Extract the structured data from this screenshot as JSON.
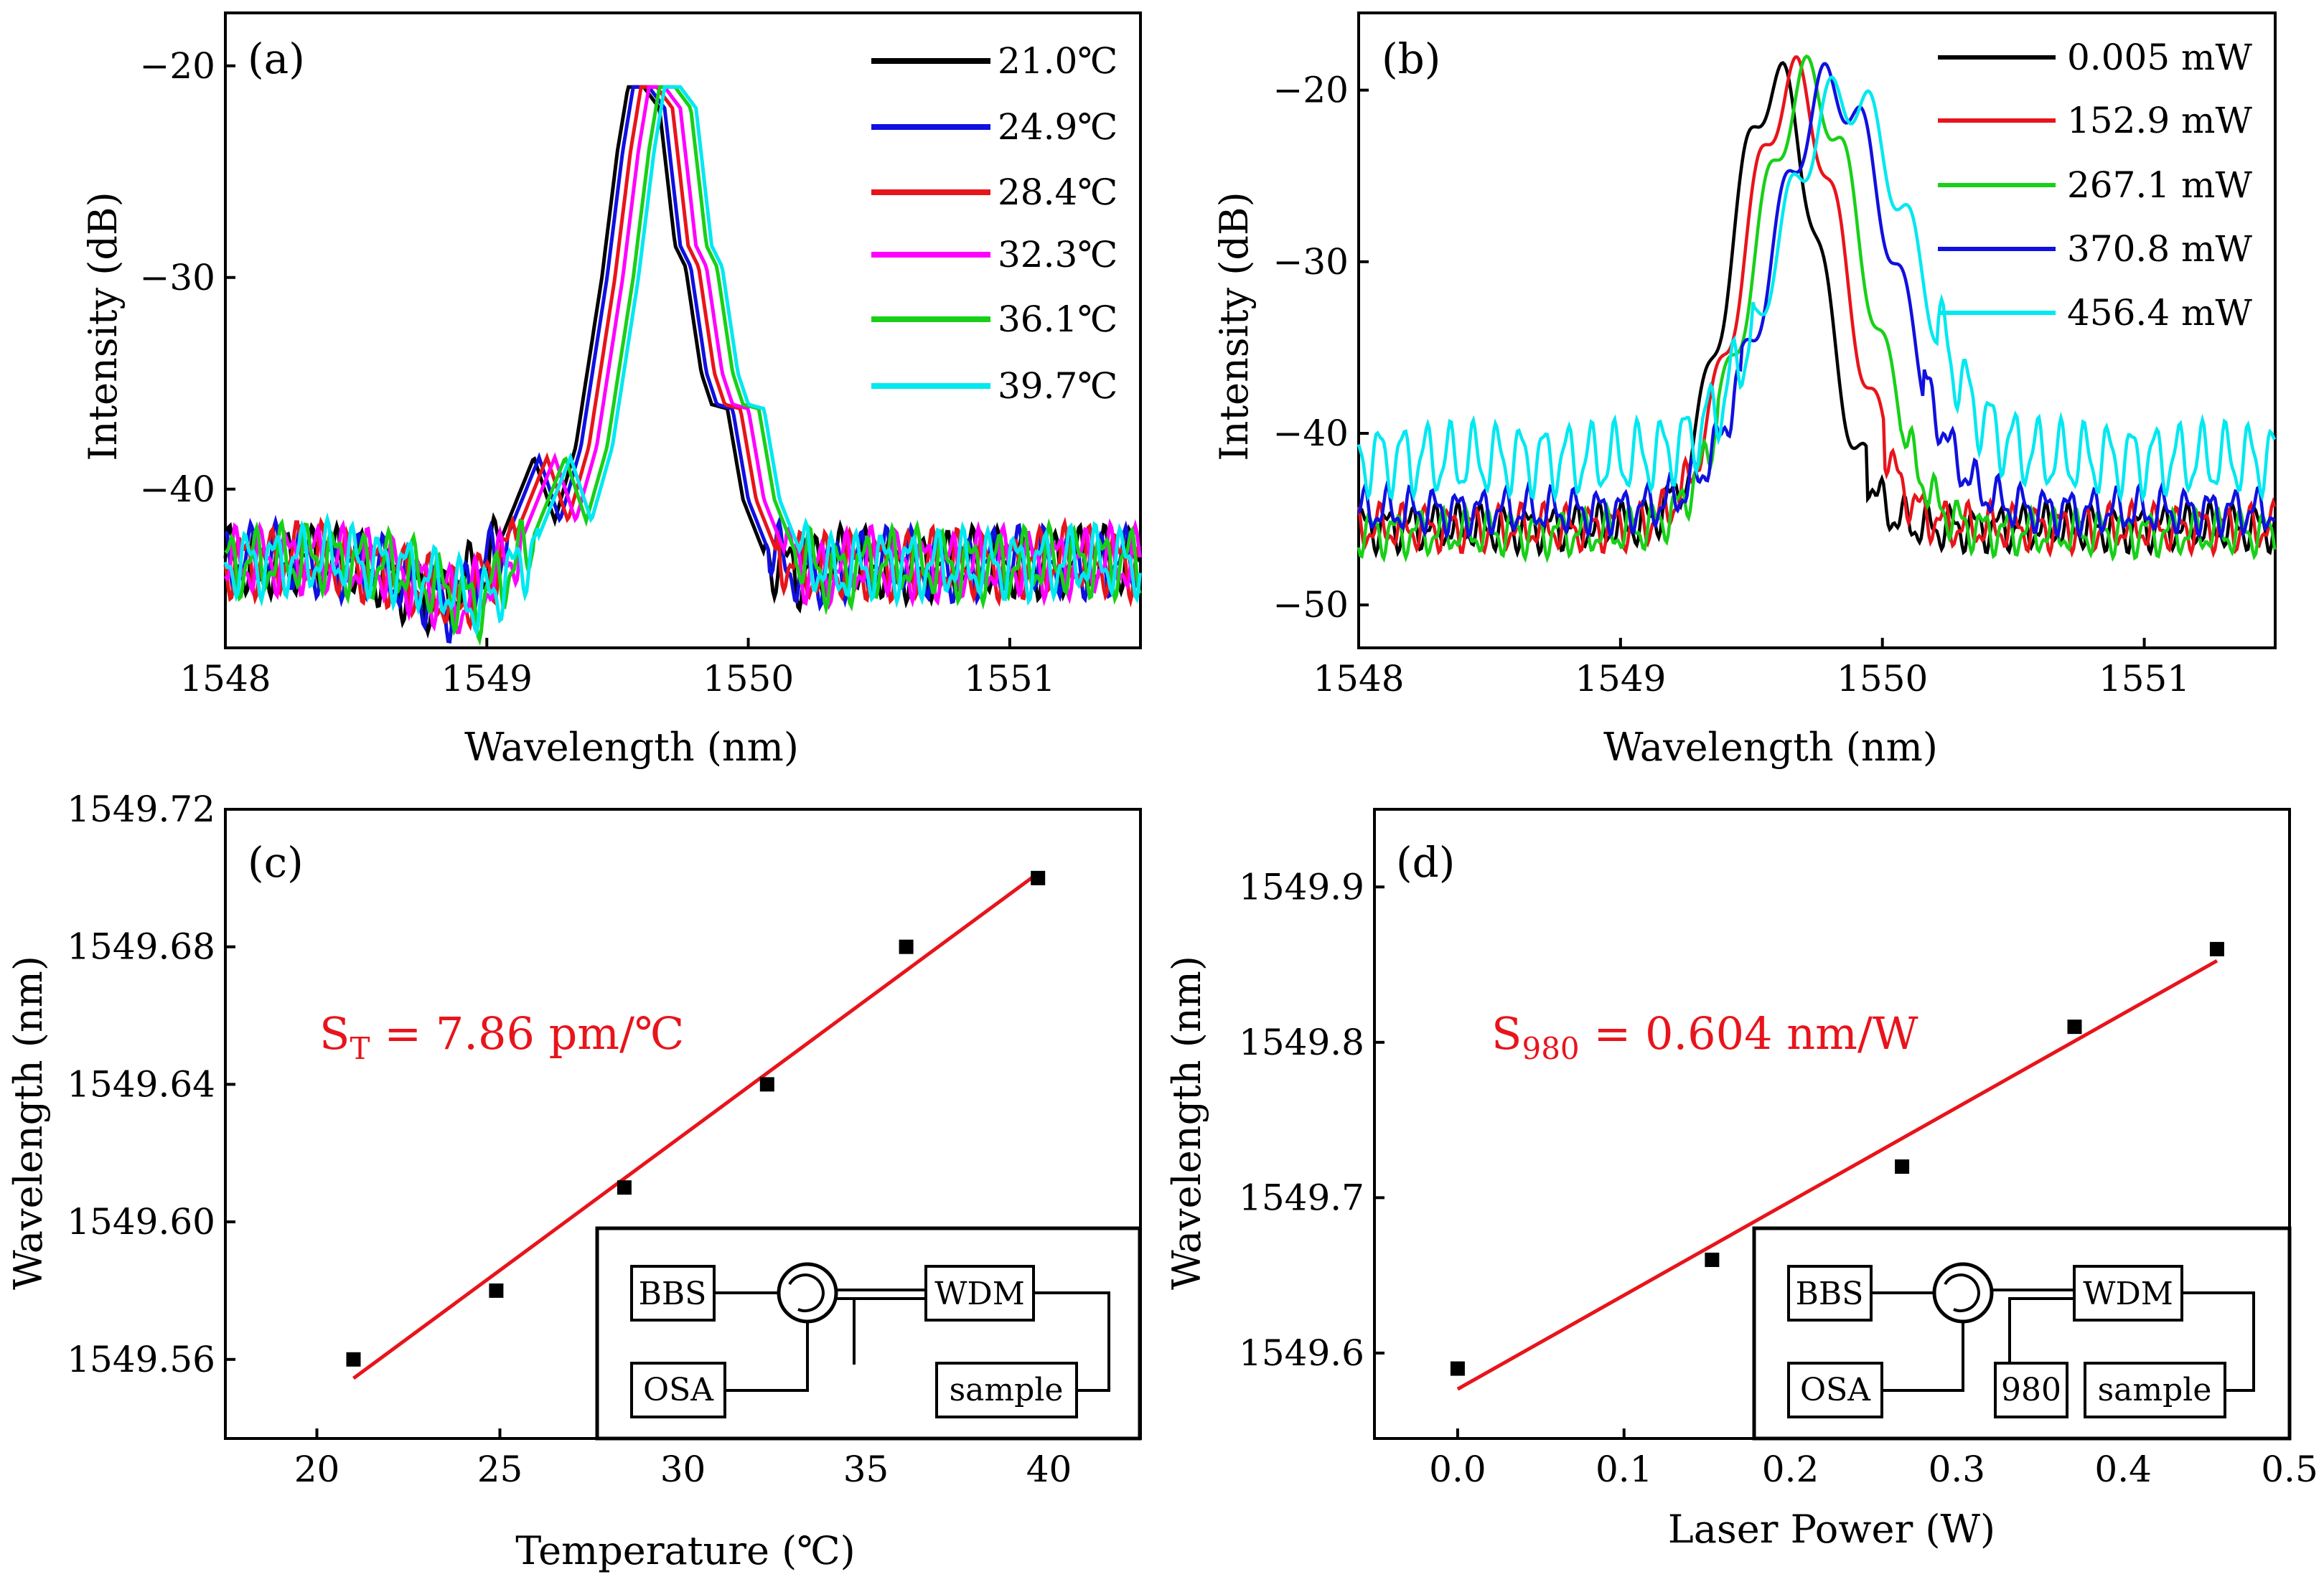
{
  "colors": {
    "black": "#000000",
    "blue": "#1010e0",
    "red": "#e8141b",
    "magenta": "#ff00ff",
    "green": "#18d018",
    "cyan": "#00e8f0",
    "fit": "#e8141b"
  },
  "chart_data": [
    {
      "type": "line",
      "label": "(a)",
      "xlabel": "Wavelength (nm)",
      "ylabel": "Intensity (dB)",
      "xlim": [
        1548,
        1551.5
      ],
      "ylim": [
        -47.5,
        -17.5
      ],
      "xticks": [
        1548,
        1549,
        1550,
        1551
      ],
      "yticks": [
        -20,
        -30,
        -40
      ],
      "xtick_labels": [
        "1548",
        "1549",
        "1550",
        "1551"
      ],
      "ytick_labels": [
        "−20",
        "−30",
        "−40"
      ],
      "model": {
        "noise_floor": -43.5,
        "peak": -21.0,
        "base_center": 1549.6
      },
      "series": [
        {
          "name": "21.0℃",
          "color": "#000000",
          "center": 1549.56
        },
        {
          "name": "24.9℃",
          "color": "#1010e0",
          "center": 1549.58
        },
        {
          "name": "28.4℃",
          "color": "#e8141b",
          "center": 1549.61
        },
        {
          "name": "32.3℃",
          "color": "#ff00ff",
          "center": 1549.64
        },
        {
          "name": "36.1℃",
          "color": "#18d018",
          "center": 1549.68
        },
        {
          "name": "39.7℃",
          "color": "#00e8f0",
          "center": 1549.7
        }
      ]
    },
    {
      "type": "line",
      "label": "(b)",
      "xlabel": "Wavelength (nm)",
      "ylabel": "Intensity (dB)",
      "xlim": [
        1548,
        1551.5
      ],
      "ylim": [
        -52.5,
        -15.5
      ],
      "xticks": [
        1548,
        1549,
        1550,
        1551
      ],
      "yticks": [
        -20,
        -30,
        -40,
        -50
      ],
      "xtick_labels": [
        "1548",
        "1549",
        "1550",
        "1551"
      ],
      "ytick_labels": [
        "−20",
        "−30",
        "−40",
        "−50"
      ],
      "series": [
        {
          "name": "0.005 mW",
          "color": "#000000",
          "center": 1549.59,
          "peak": -19.5,
          "floor": -45.5
        },
        {
          "name": "152.9 mW",
          "color": "#e8141b",
          "center": 1549.66,
          "peak": -19.6,
          "floor": -45.5
        },
        {
          "name": "267.1 mW",
          "color": "#18d018",
          "center": 1549.72,
          "peak": -19.6,
          "floor": -45.8
        },
        {
          "name": "370.8 mW",
          "color": "#1010e0",
          "center": 1549.81,
          "peak": -19.8,
          "floor": -44.5
        },
        {
          "name": "456.4 mW",
          "color": "#00e8f0",
          "center": 1549.86,
          "peak": -20.3,
          "floor": -41.5
        }
      ]
    },
    {
      "type": "scatter",
      "label": "(c)",
      "xlabel": "Temperature (℃)",
      "ylabel": "Wavelength (nm)",
      "xlim": [
        17.5,
        42.5
      ],
      "ylim": [
        1549.537,
        1549.72
      ],
      "xticks": [
        20,
        25,
        30,
        35,
        40
      ],
      "yticks": [
        1549.56,
        1549.6,
        1549.64,
        1549.68,
        1549.72
      ],
      "xtick_labels": [
        "20",
        "25",
        "30",
        "35",
        "40"
      ],
      "ytick_labels": [
        "1549.56",
        "1549.60",
        "1549.64",
        "1549.68",
        "1549.72"
      ],
      "x": [
        21.0,
        24.9,
        28.4,
        32.3,
        36.1,
        39.7
      ],
      "y": [
        1549.56,
        1549.58,
        1549.61,
        1549.64,
        1549.68,
        1549.7
      ],
      "fit": {
        "x": [
          21.0,
          39.7
        ],
        "y": [
          1549.5545,
          1549.7014
        ]
      },
      "annotation": {
        "main": "S",
        "sub": "T",
        "rest": " = 7.86 pm/℃"
      },
      "inset": {
        "bbs": "BBS",
        "osa": "OSA",
        "wdm": "WDM",
        "sample": "sample"
      }
    },
    {
      "type": "scatter",
      "label": "(d)",
      "xlabel": "Laser Power (W)",
      "ylabel": "Wavelength (nm)",
      "xlim": [
        -0.05,
        0.5
      ],
      "ylim": [
        1549.545,
        1549.95
      ],
      "xticks": [
        0.0,
        0.1,
        0.2,
        0.3,
        0.4,
        0.5
      ],
      "yticks": [
        1549.6,
        1549.7,
        1549.8,
        1549.9
      ],
      "xtick_labels": [
        "0.0",
        "0.1",
        "0.2",
        "0.3",
        "0.4",
        "0.5"
      ],
      "ytick_labels": [
        "1549.6",
        "1549.7",
        "1549.8",
        "1549.9"
      ],
      "x": [
        5e-06,
        0.1529,
        0.2671,
        0.3708,
        0.4564
      ],
      "y": [
        1549.59,
        1549.66,
        1549.72,
        1549.81,
        1549.86
      ],
      "fit": {
        "x": [
          0.0,
          0.4564
        ],
        "y": [
          1549.5768,
          1549.8525
        ]
      },
      "annotation": {
        "main": "S",
        "sub": "980",
        "rest": " = 0.604 nm/W"
      },
      "inset": {
        "bbs": "BBS",
        "osa": "OSA",
        "wdm": "WDM",
        "sample": "sample",
        "pump": "980"
      }
    }
  ]
}
